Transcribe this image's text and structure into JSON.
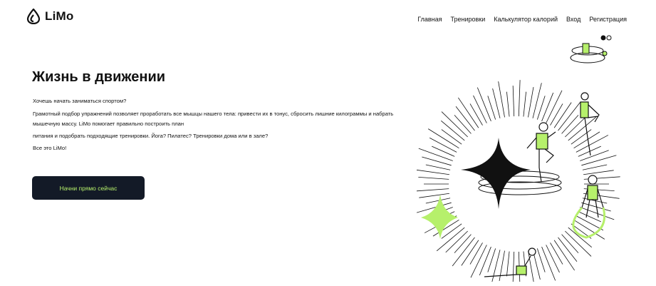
{
  "brand": {
    "name": "LiMo",
    "accent": "#b6f06b",
    "dark": "#131a27"
  },
  "nav": {
    "items": [
      "Главная",
      "Тренировки",
      "Калькулятор калорий",
      "Вход",
      "Регистрация"
    ]
  },
  "hero": {
    "title": "Жизнь в движении",
    "lines": [
      "Хочешь начать заниматься спортом?",
      "Грамотный подбор упражнений позволяет проработать все мышцы нашего тела: привести их в тонус, сбросить лишние килограммы и набрать",
      "мышечную массу. LiMo помогает правильно построить план",
      "питания и подобрать подходящие тренировки. Йога? Пилатес? Тренировки дома или в зале?",
      "Все это LiMo!"
    ],
    "cta": "Начни прямо сейчас"
  }
}
